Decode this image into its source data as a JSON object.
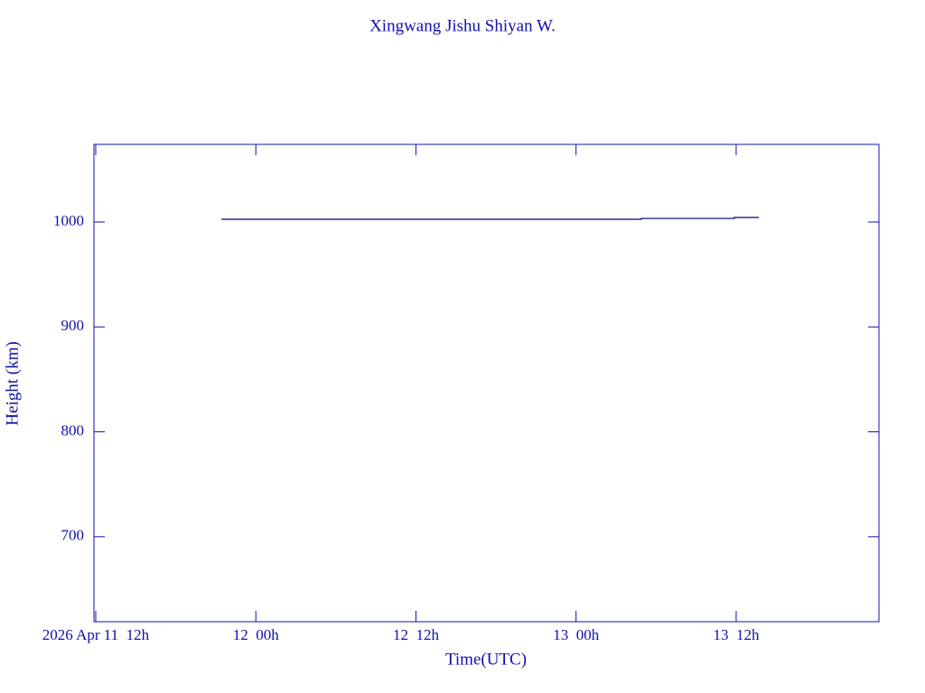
{
  "chart_data": {
    "type": "line",
    "title": "Xingwang Jishu Shiyan W.",
    "x_label": "Time(UTC)",
    "y_label": "Height (km)",
    "x": [
      "2026-04-11 21:25",
      "2026-04-13 04:53",
      "2026-04-13 04:53",
      "2026-04-13 11:52",
      "2026-04-13 11:52",
      "2026-04-13 13:42"
    ],
    "series": [
      {
        "color": "#000080",
        "values": [
          1002.6,
          1002.6,
          1003.4,
          1003.4,
          1004.3,
          1004.3
        ]
      }
    ],
    "xlim": [
      "2026-04-11 11:52",
      "2026-04-13 22:42"
    ],
    "xticks": [
      {
        "value": "2026-04-11 12:00",
        "label": "2026 Apr 11  12h"
      },
      {
        "value": "2026-04-12 00:00",
        "label": "12  00h"
      },
      {
        "value": "2026-04-12 12:00",
        "label": "12  12h"
      },
      {
        "value": "2026-04-13 00:00",
        "label": "13  00h"
      },
      {
        "value": "2026-04-13 12:00",
        "label": "13  12h"
      }
    ],
    "ylim": [
      619,
      1074
    ],
    "yticks": [
      700,
      800,
      900,
      1000
    ]
  }
}
